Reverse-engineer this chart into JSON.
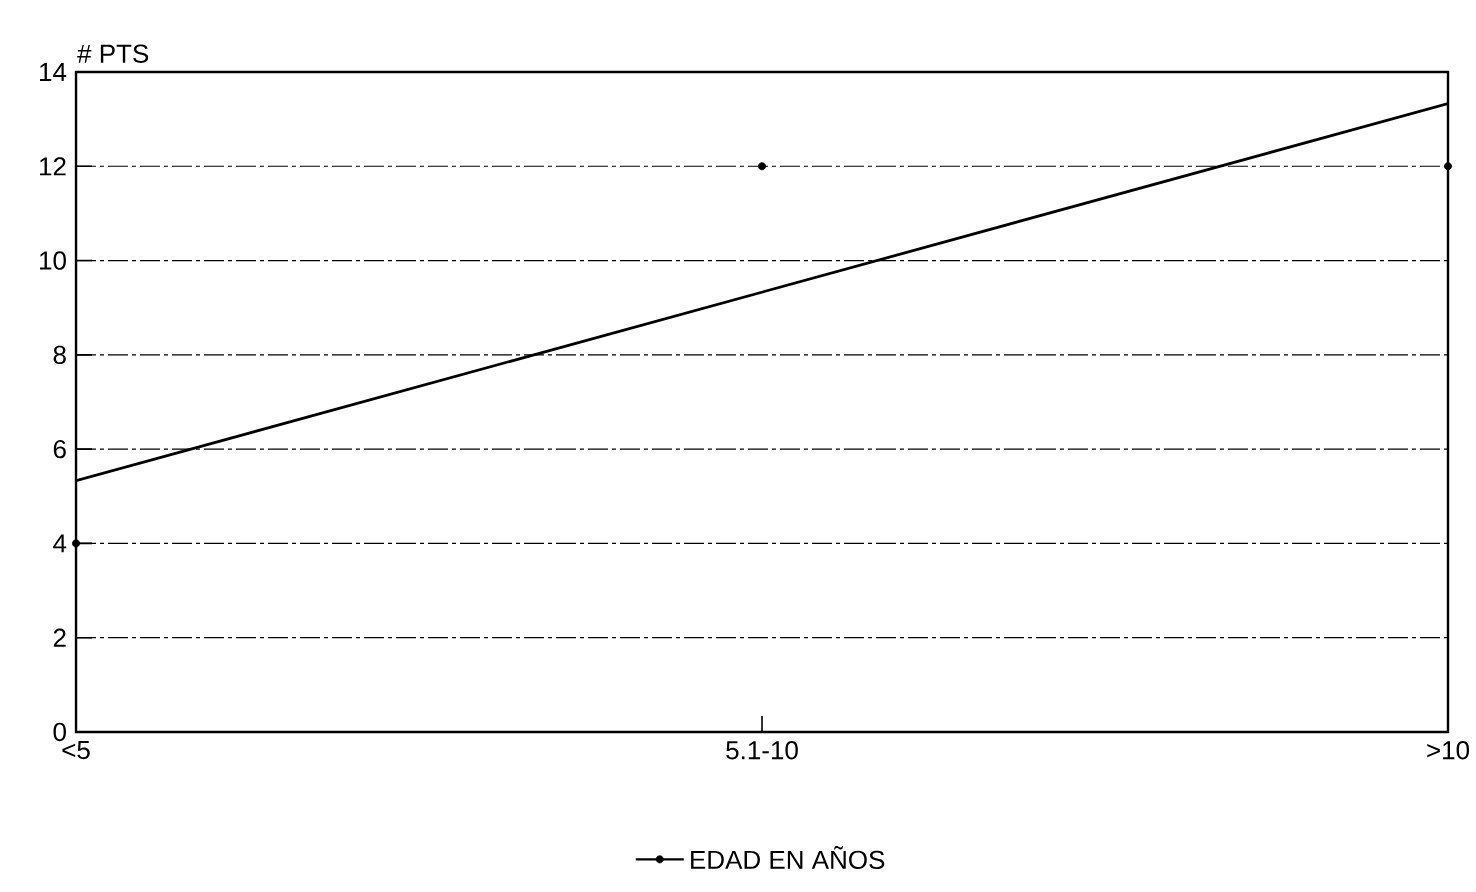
{
  "chart_data": {
    "type": "line",
    "ylabel": "# PTS",
    "categories": [
      "<5",
      "5.1-10",
      ">10"
    ],
    "series": [
      {
        "name": "EDAD EN AÑOS",
        "type": "scatter",
        "color": "#000000",
        "marker": "circle",
        "values": [
          4,
          12,
          12
        ]
      },
      {
        "color": "#000000",
        "values": [
          5.33,
          9.33,
          13.33
        ]
      }
    ],
    "ylim": [
      0,
      14
    ],
    "yticks": [
      0,
      2,
      4,
      6,
      8,
      10,
      12,
      14
    ],
    "grid": "y",
    "legend": "bottom"
  }
}
